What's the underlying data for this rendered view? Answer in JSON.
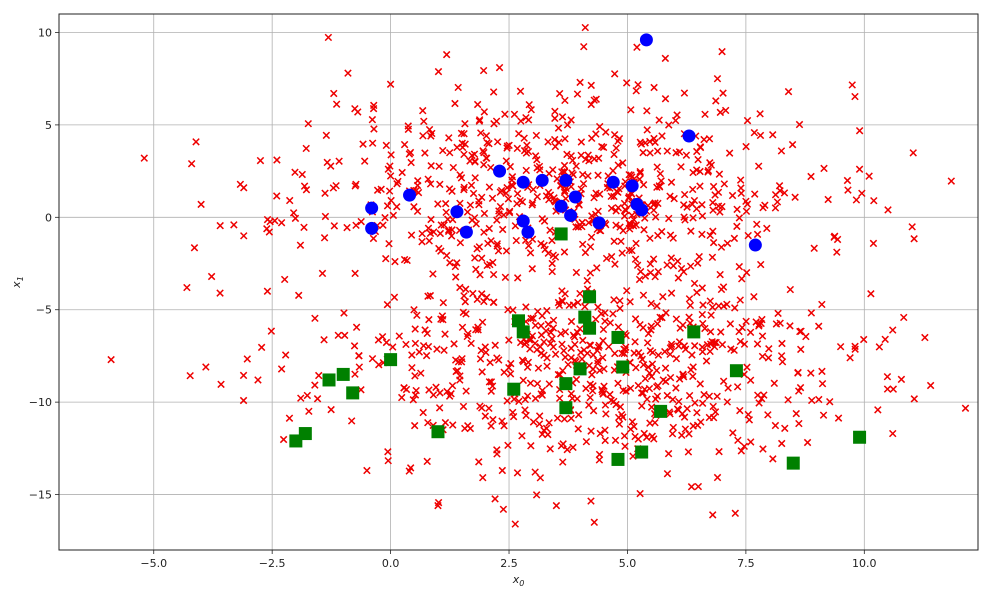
{
  "chart_data": {
    "type": "scatter",
    "title": "",
    "xlabel": "x",
    "xlabel_sub": "0",
    "ylabel": "x",
    "ylabel_sub": "1",
    "xlim": [
      -7.0,
      12.4
    ],
    "ylim": [
      -18.0,
      11.0
    ],
    "x_ticks": [
      -5.0,
      -2.5,
      0.0,
      2.5,
      5.0,
      7.5,
      10.0
    ],
    "x_tick_labels": [
      "−5.0",
      "−2.5",
      "0.0",
      "2.5",
      "5.0",
      "7.5",
      "10.0"
    ],
    "y_ticks": [
      10,
      5,
      0,
      -5,
      -10,
      -15
    ],
    "y_tick_labels": [
      "10",
      "5",
      "0",
      "−5",
      "−10",
      "−15"
    ],
    "grid": true,
    "legend": false,
    "series": [
      {
        "marker": "x",
        "color": "#ee0000",
        "clusters": [
          {
            "center": [
              3.5,
              1.6
            ],
            "spread": [
              2.7,
              2.8
            ],
            "count": 650,
            "seed": 11
          },
          {
            "center": [
              4.0,
              -8.3
            ],
            "spread": [
              2.8,
              2.8
            ],
            "count": 650,
            "seed": 23
          }
        ],
        "points": [
          [
            -5.9,
            -7.7
          ],
          [
            -5.2,
            3.2
          ],
          [
            -4.2,
            2.9
          ],
          [
            -4.3,
            -3.8
          ],
          [
            -3.9,
            -8.1
          ],
          [
            -4.0,
            0.7
          ],
          [
            -3.6,
            -4.1
          ],
          [
            -3.1,
            1.6
          ],
          [
            -3.1,
            -1.0
          ],
          [
            -2.8,
            -8.8
          ],
          [
            -2.4,
            3.1
          ],
          [
            -2.6,
            -4.0
          ],
          [
            11.4,
            -9.1
          ],
          [
            10.6,
            -6.1
          ],
          [
            10.6,
            -11.7
          ],
          [
            10.5,
            0.4
          ],
          [
            10.2,
            0.9
          ],
          [
            9.9,
            2.6
          ],
          [
            9.7,
            -7.6
          ],
          [
            9.5,
            -7.0
          ],
          [
            8.4,
            6.8
          ],
          [
            7.8,
            5.6
          ],
          [
            6.9,
            7.5
          ],
          [
            6.8,
            -16.1
          ],
          [
            4.3,
            -16.5
          ],
          [
            3.5,
            -15.6
          ],
          [
            5.2,
            9.2
          ],
          [
            5.8,
            8.6
          ],
          [
            4.0,
            7.3
          ],
          [
            2.3,
            8.1
          ],
          [
            1.0,
            -15.6
          ],
          [
            0.0,
            7.2
          ],
          [
            -0.9,
            7.8
          ],
          [
            -1.2,
            6.7
          ],
          [
            -0.5,
            -13.7
          ]
        ]
      },
      {
        "marker": "circle",
        "color": "#0000ff",
        "points": [
          [
            5.4,
            9.6
          ],
          [
            6.3,
            4.4
          ],
          [
            7.7,
            -1.5
          ],
          [
            -0.4,
            0.5
          ],
          [
            -0.4,
            -0.6
          ],
          [
            0.4,
            1.2
          ],
          [
            1.4,
            0.3
          ],
          [
            1.6,
            -0.8
          ],
          [
            2.3,
            2.5
          ],
          [
            2.8,
            -0.2
          ],
          [
            2.8,
            1.9
          ],
          [
            2.9,
            -0.8
          ],
          [
            3.2,
            2.0
          ],
          [
            3.6,
            0.6
          ],
          [
            3.7,
            2.0
          ],
          [
            3.8,
            0.1
          ],
          [
            3.9,
            1.1
          ],
          [
            4.4,
            -0.3
          ],
          [
            4.7,
            1.9
          ],
          [
            5.1,
            1.7
          ],
          [
            5.2,
            0.7
          ],
          [
            5.3,
            0.4
          ]
        ]
      },
      {
        "marker": "square",
        "color": "#008000",
        "points": [
          [
            -2.0,
            -12.1
          ],
          [
            -1.8,
            -11.7
          ],
          [
            -1.3,
            -8.8
          ],
          [
            -1.0,
            -8.5
          ],
          [
            -0.8,
            -9.5
          ],
          [
            0.0,
            -7.7
          ],
          [
            1.0,
            -11.6
          ],
          [
            2.6,
            -9.3
          ],
          [
            2.7,
            -5.6
          ],
          [
            2.8,
            -6.2
          ],
          [
            3.6,
            -0.9
          ],
          [
            3.7,
            -10.3
          ],
          [
            3.7,
            -9.0
          ],
          [
            4.0,
            -8.2
          ],
          [
            4.1,
            -5.4
          ],
          [
            4.2,
            -6.0
          ],
          [
            4.2,
            -4.3
          ],
          [
            4.8,
            -6.5
          ],
          [
            4.8,
            -13.1
          ],
          [
            4.9,
            -8.1
          ],
          [
            5.3,
            -12.7
          ],
          [
            5.7,
            -10.5
          ],
          [
            6.4,
            -6.2
          ],
          [
            7.3,
            -8.3
          ],
          [
            8.5,
            -13.3
          ],
          [
            9.9,
            -11.9
          ]
        ]
      }
    ]
  }
}
